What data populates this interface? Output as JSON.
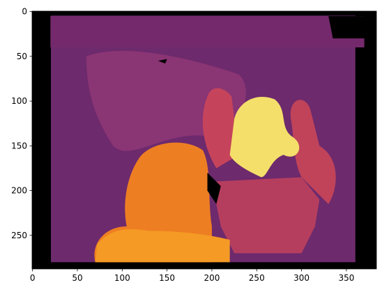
{
  "chart_data": {
    "type": "image",
    "xlim": [
      -0.5,
      383.5
    ],
    "ylim": [
      287.5,
      -0.5
    ],
    "xticks": [
      0,
      50,
      100,
      150,
      200,
      250,
      300,
      350
    ],
    "yticks": [
      0,
      50,
      100,
      150,
      200,
      250
    ]
  }
}
